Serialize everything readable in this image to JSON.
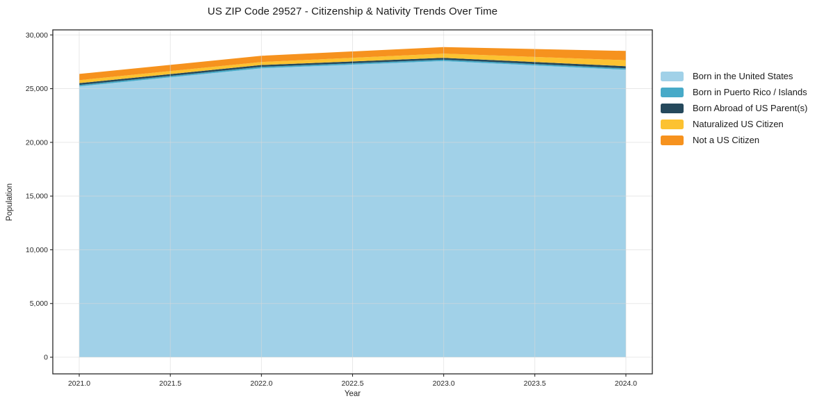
{
  "chart_data": {
    "type": "area",
    "stacked": true,
    "title": "US ZIP Code 29527 - Citizenship & Nativity Trends Over Time",
    "xlabel": "Year",
    "ylabel": "Population",
    "x": [
      2021,
      2022,
      2023,
      2024
    ],
    "series": [
      {
        "name": "Born in the United States",
        "color": "#a1d1e8",
        "values": [
          25210,
          26900,
          27570,
          26760
        ]
      },
      {
        "name": "Born in Puerto Rico / Islands",
        "color": "#47aac8",
        "values": [
          130,
          130,
          130,
          130
        ]
      },
      {
        "name": "Born Abroad of US Parent(s)",
        "color": "#25495c",
        "values": [
          170,
          170,
          170,
          200
        ]
      },
      {
        "name": "Naturalized US Citizen",
        "color": "#fcc231",
        "values": [
          280,
          280,
          390,
          560
        ]
      },
      {
        "name": "Not a US Citizen",
        "color": "#f6921e",
        "values": [
          580,
          580,
          610,
          860
        ]
      }
    ],
    "totals": [
      26370,
      28060,
      28870,
      28510
    ],
    "xticks": {
      "values": [
        2021.0,
        2021.5,
        2022.0,
        2022.5,
        2023.0,
        2023.5,
        2024.0
      ],
      "labels": [
        "2021.0",
        "2021.5",
        "2022.0",
        "2022.5",
        "2023.0",
        "2023.5",
        "2024.0"
      ]
    },
    "yticks": {
      "values": [
        0,
        5000,
        10000,
        15000,
        20000,
        25000,
        30000
      ],
      "labels": [
        "0",
        "5,000",
        "10,000",
        "15,000",
        "20,000",
        "25,000",
        "30,000"
      ]
    },
    "xlim": [
      2020.855,
      2024.145
    ],
    "ylim": [
      -1550,
      30470
    ],
    "grid": true,
    "grid_color": "#d9d9d9",
    "spine_color": "#262626",
    "legend_position": "outside-right"
  }
}
